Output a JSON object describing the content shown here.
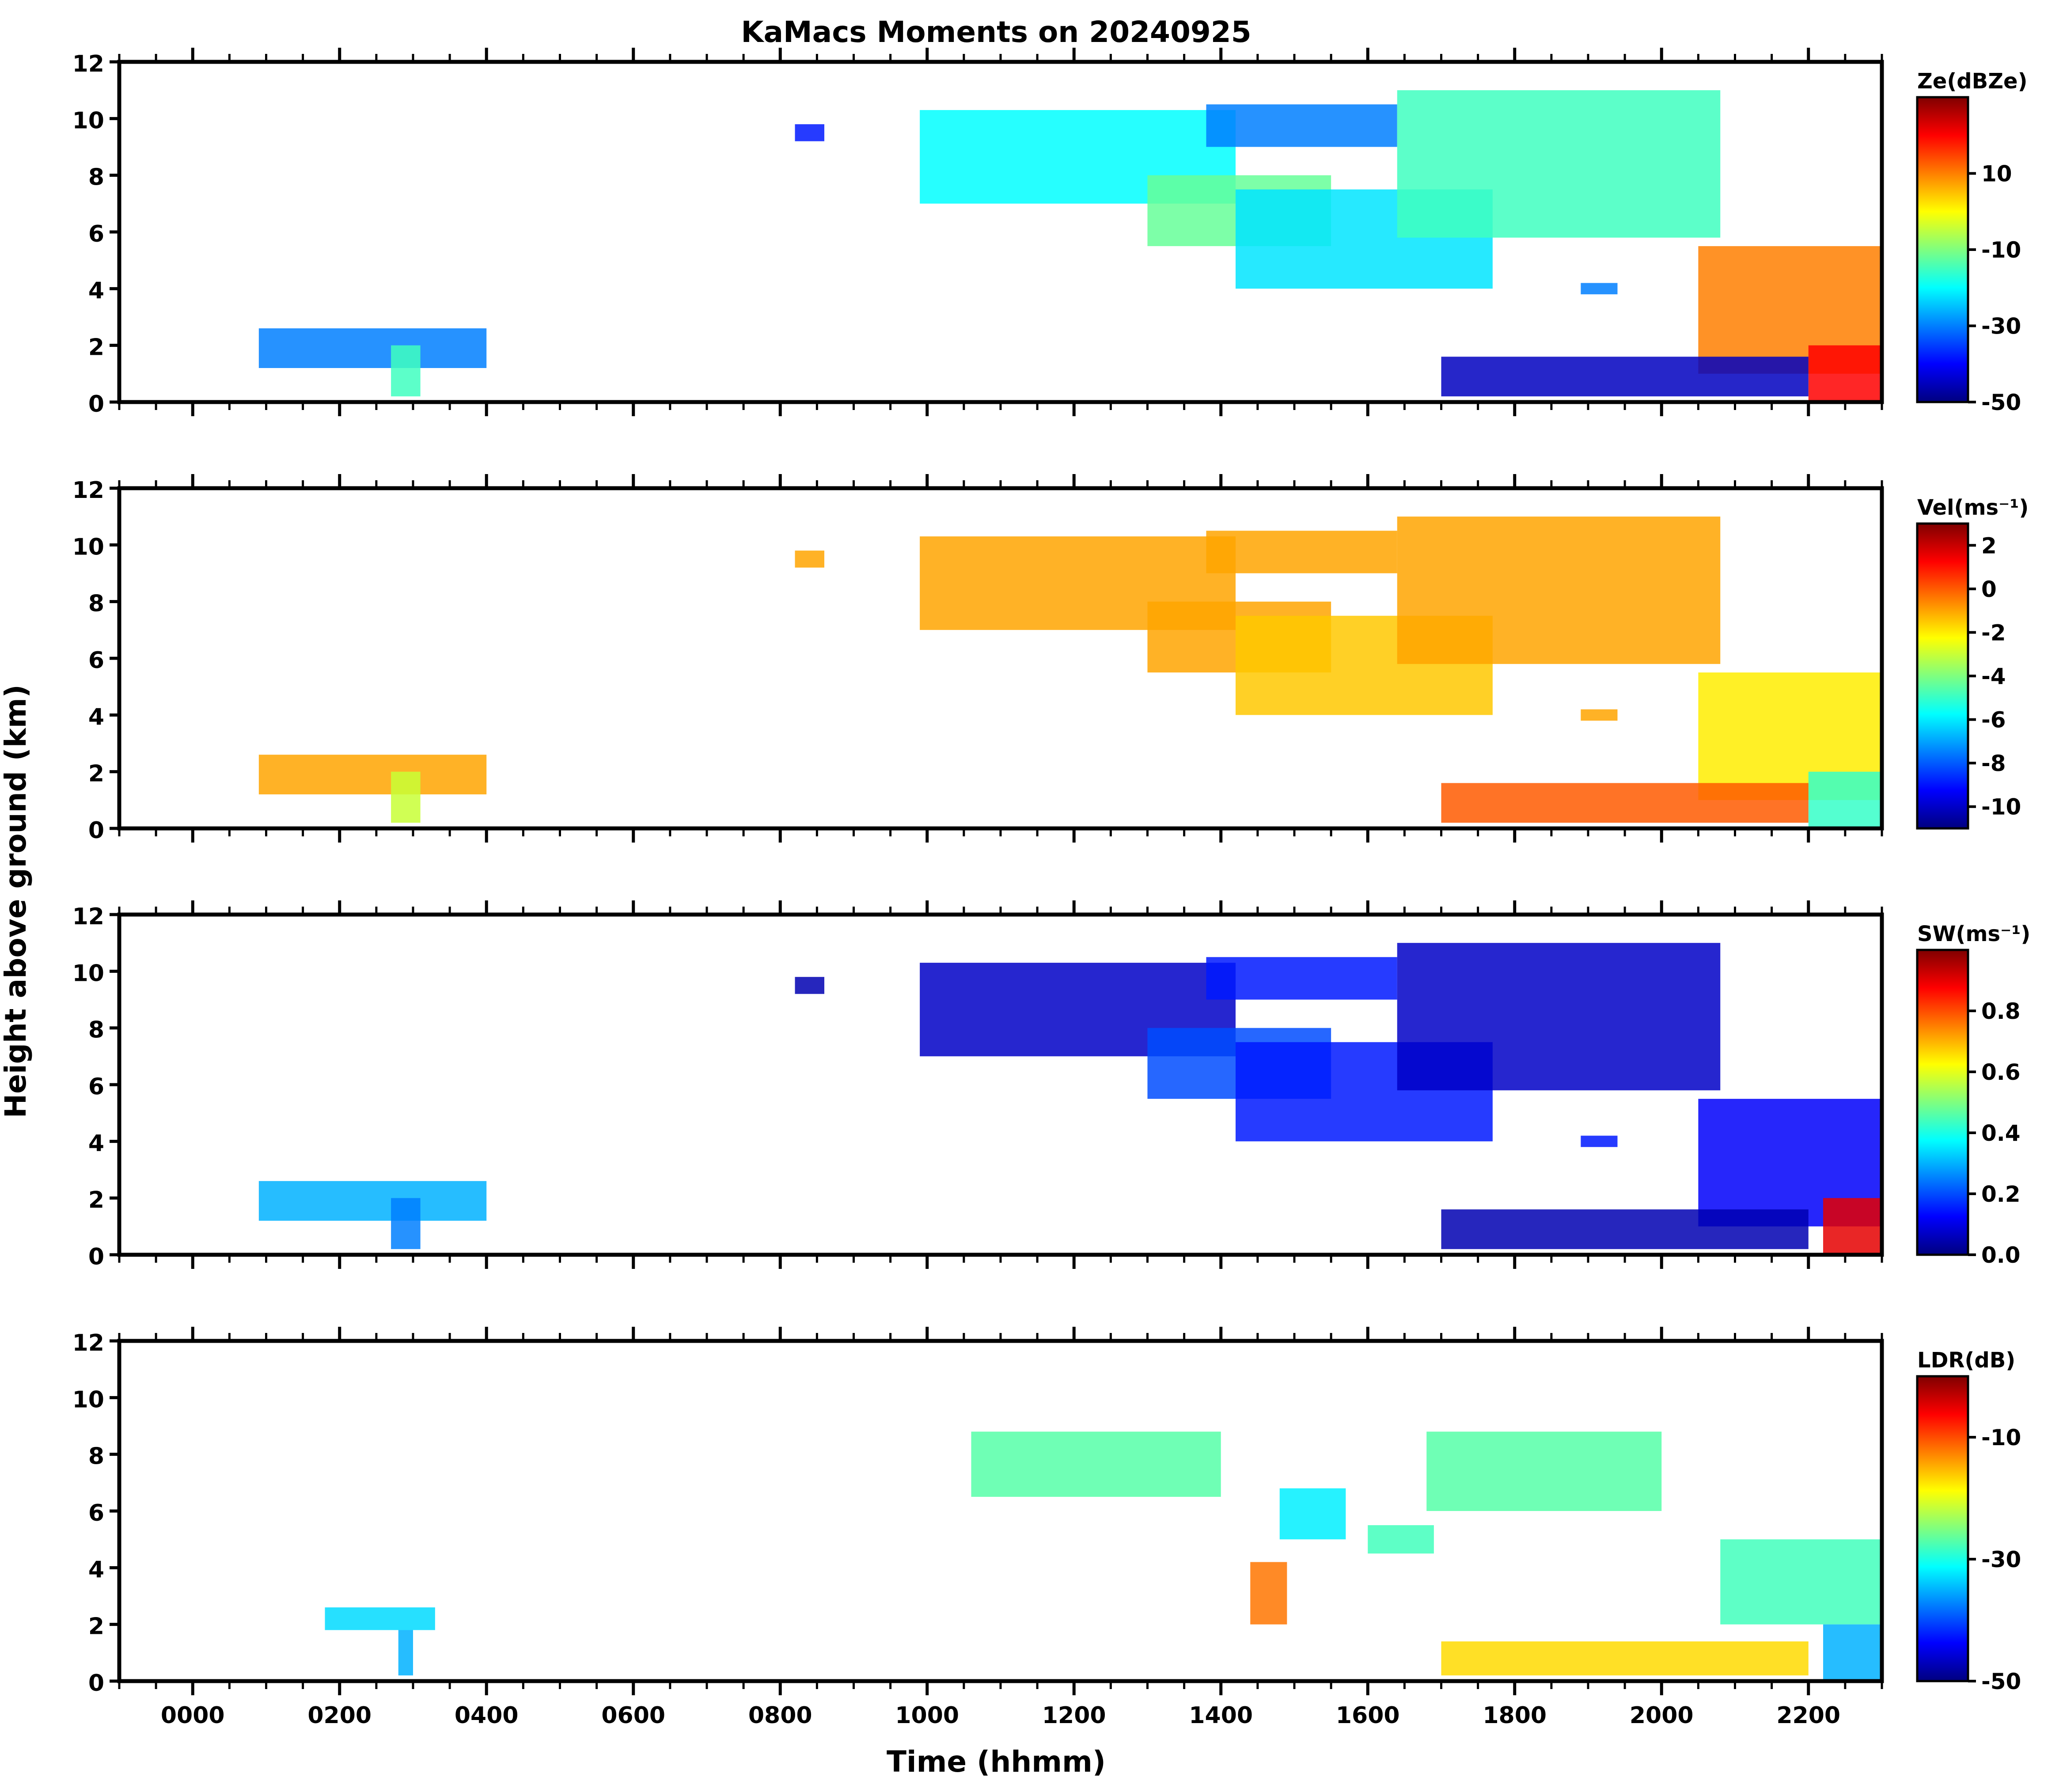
{
  "figure": {
    "title": "KaMacs Moments on 20240925",
    "xlabel": "Time (hhmm)",
    "ylabel": "Height above ground (km)"
  },
  "colors": {
    "colormap": "jet",
    "stops": [
      "#00007f",
      "#0000ff",
      "#007fff",
      "#00ffff",
      "#7fff7f",
      "#ffff00",
      "#ff7f00",
      "#ff0000",
      "#7f0000"
    ]
  },
  "chart_data": [
    {
      "type": "heatmap",
      "name": "Ze",
      "colorbar": {
        "label": "Ze(dBZe)",
        "range": [
          -50,
          30
        ],
        "ticks": [
          -50,
          -30,
          -10,
          10
        ]
      },
      "xlim": [
        -100,
        2300
      ],
      "ylim": [
        0,
        12
      ],
      "yticks": [
        0,
        2,
        4,
        6,
        8,
        10,
        12
      ],
      "features": [
        {
          "t0": 90,
          "t1": 400,
          "h0": 1.2,
          "h1": 2.6,
          "v": -30
        },
        {
          "t0": 270,
          "t1": 310,
          "h0": 0.2,
          "h1": 2.0,
          "v": -15
        },
        {
          "t0": 820,
          "t1": 860,
          "h0": 9.2,
          "h1": 9.8,
          "v": -38
        },
        {
          "t0": 990,
          "t1": 1420,
          "h0": 7.0,
          "h1": 10.3,
          "v": -20
        },
        {
          "t0": 1300,
          "t1": 1550,
          "h0": 5.5,
          "h1": 8.0,
          "v": -12
        },
        {
          "t0": 1420,
          "t1": 1770,
          "h0": 4.0,
          "h1": 7.5,
          "v": -22
        },
        {
          "t0": 1380,
          "t1": 1640,
          "h0": 9.0,
          "h1": 10.5,
          "v": -30
        },
        {
          "t0": 1640,
          "t1": 2080,
          "h0": 5.8,
          "h1": 11.0,
          "v": -15
        },
        {
          "t0": 1890,
          "t1": 1940,
          "h0": 3.8,
          "h1": 4.2,
          "v": -30
        },
        {
          "t0": 2050,
          "t1": 2300,
          "h0": 1.0,
          "h1": 5.5,
          "v": 10
        },
        {
          "t0": 2200,
          "t1": 2300,
          "h0": 0.0,
          "h1": 2.0,
          "v": 20
        },
        {
          "t0": 1700,
          "t1": 2200,
          "h0": 0.2,
          "h1": 1.6,
          "v": -45
        }
      ]
    },
    {
      "type": "heatmap",
      "name": "Vel",
      "colorbar": {
        "label": "Vel(ms⁻¹)",
        "range": [
          -11,
          3
        ],
        "ticks": [
          -10,
          -8,
          -6,
          -4,
          -2,
          0,
          2
        ]
      },
      "xlim": [
        -100,
        2300
      ],
      "ylim": [
        0,
        12
      ],
      "yticks": [
        0,
        2,
        4,
        6,
        8,
        10,
        12
      ],
      "features": [
        {
          "t0": 90,
          "t1": 400,
          "h0": 1.2,
          "h1": 2.6,
          "v": -1
        },
        {
          "t0": 270,
          "t1": 310,
          "h0": 0.2,
          "h1": 2.0,
          "v": -3
        },
        {
          "t0": 820,
          "t1": 860,
          "h0": 9.2,
          "h1": 9.8,
          "v": -1
        },
        {
          "t0": 990,
          "t1": 1420,
          "h0": 7.0,
          "h1": 10.3,
          "v": -1
        },
        {
          "t0": 1300,
          "t1": 1550,
          "h0": 5.5,
          "h1": 8.0,
          "v": -1
        },
        {
          "t0": 1420,
          "t1": 1770,
          "h0": 4.0,
          "h1": 7.5,
          "v": -1.5
        },
        {
          "t0": 1380,
          "t1": 1640,
          "h0": 9.0,
          "h1": 10.5,
          "v": -1
        },
        {
          "t0": 1640,
          "t1": 2080,
          "h0": 5.8,
          "h1": 11.0,
          "v": -1
        },
        {
          "t0": 1890,
          "t1": 1940,
          "h0": 3.8,
          "h1": 4.2,
          "v": -1
        },
        {
          "t0": 2050,
          "t1": 2300,
          "h0": 1.0,
          "h1": 5.5,
          "v": -2
        },
        {
          "t0": 2200,
          "t1": 2300,
          "h0": 0.0,
          "h1": 2.0,
          "v": -5
        },
        {
          "t0": 1700,
          "t1": 2200,
          "h0": 0.2,
          "h1": 1.6,
          "v": 0
        }
      ]
    },
    {
      "type": "heatmap",
      "name": "SW",
      "colorbar": {
        "label": "SW(ms⁻¹)",
        "range": [
          0,
          1
        ],
        "ticks": [
          0.0,
          0.2,
          0.4,
          0.6,
          0.8
        ]
      },
      "xlim": [
        -100,
        2300
      ],
      "ylim": [
        0,
        12
      ],
      "yticks": [
        0,
        2,
        4,
        6,
        8,
        10,
        12
      ],
      "features": [
        {
          "t0": 90,
          "t1": 400,
          "h0": 1.2,
          "h1": 2.6,
          "v": 0.3
        },
        {
          "t0": 270,
          "t1": 310,
          "h0": 0.2,
          "h1": 2.0,
          "v": 0.25
        },
        {
          "t0": 820,
          "t1": 860,
          "h0": 9.2,
          "h1": 9.8,
          "v": 0.05
        },
        {
          "t0": 990,
          "t1": 1420,
          "h0": 7.0,
          "h1": 10.3,
          "v": 0.07
        },
        {
          "t0": 1300,
          "t1": 1550,
          "h0": 5.5,
          "h1": 8.0,
          "v": 0.2
        },
        {
          "t0": 1420,
          "t1": 1770,
          "h0": 4.0,
          "h1": 7.5,
          "v": 0.15
        },
        {
          "t0": 1380,
          "t1": 1640,
          "h0": 9.0,
          "h1": 10.5,
          "v": 0.15
        },
        {
          "t0": 1640,
          "t1": 2080,
          "h0": 5.8,
          "h1": 11.0,
          "v": 0.07
        },
        {
          "t0": 1890,
          "t1": 1940,
          "h0": 3.8,
          "h1": 4.2,
          "v": 0.15
        },
        {
          "t0": 2050,
          "t1": 2300,
          "h0": 1.0,
          "h1": 5.5,
          "v": 0.12
        },
        {
          "t0": 2220,
          "t1": 2300,
          "h0": 0.0,
          "h1": 2.0,
          "v": 0.9
        },
        {
          "t0": 1700,
          "t1": 2200,
          "h0": 0.2,
          "h1": 1.6,
          "v": 0.05
        }
      ]
    },
    {
      "type": "heatmap",
      "name": "LDR",
      "colorbar": {
        "label": "LDR(dB)",
        "range": [
          -50,
          0
        ],
        "ticks": [
          -50,
          -30,
          -10
        ]
      },
      "xlim": [
        -100,
        2300
      ],
      "ylim": [
        0,
        12
      ],
      "yticks": [
        0,
        2,
        4,
        6,
        8,
        10,
        12
      ],
      "xticks": [
        0,
        200,
        400,
        600,
        800,
        1000,
        1200,
        1400,
        1600,
        1800,
        2000,
        2200
      ],
      "xticklabels": [
        "0000",
        "0200",
        "0400",
        "0600",
        "0800",
        "1000",
        "1200",
        "1400",
        "1600",
        "1800",
        "2000",
        "2200"
      ],
      "features": [
        {
          "t0": 180,
          "t1": 330,
          "h0": 1.8,
          "h1": 2.6,
          "v": -33
        },
        {
          "t0": 280,
          "t1": 300,
          "h0": 0.2,
          "h1": 1.8,
          "v": -35
        },
        {
          "t0": 1060,
          "t1": 1400,
          "h0": 6.5,
          "h1": 8.8,
          "v": -27
        },
        {
          "t0": 1480,
          "t1": 1570,
          "h0": 5.0,
          "h1": 6.8,
          "v": -32
        },
        {
          "t0": 1600,
          "t1": 1690,
          "h0": 4.5,
          "h1": 5.5,
          "v": -28
        },
        {
          "t0": 1680,
          "t1": 2000,
          "h0": 6.0,
          "h1": 8.8,
          "v": -27
        },
        {
          "t0": 2080,
          "t1": 2300,
          "h0": 2.0,
          "h1": 5.0,
          "v": -28
        },
        {
          "t0": 2220,
          "t1": 2300,
          "h0": 0.0,
          "h1": 2.0,
          "v": -35
        },
        {
          "t0": 1440,
          "t1": 1490,
          "h0": 2.0,
          "h1": 4.2,
          "v": -12
        },
        {
          "t0": 1700,
          "t1": 2200,
          "h0": 0.2,
          "h1": 1.4,
          "v": -17
        }
      ]
    }
  ]
}
